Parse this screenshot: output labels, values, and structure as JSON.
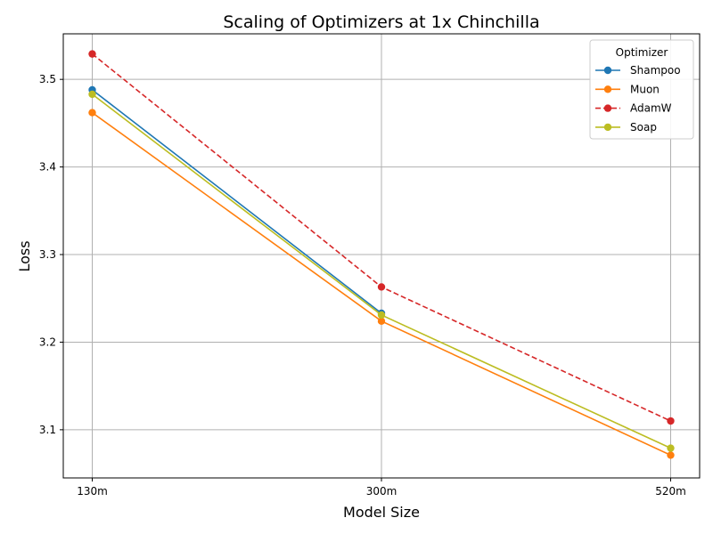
{
  "chart_data": {
    "type": "line",
    "title": "Scaling of Optimizers at 1x Chinchilla",
    "xlabel": "Model Size",
    "ylabel": "Loss",
    "categories": [
      "130m",
      "300m",
      "520m"
    ],
    "ylim": [
      3.045,
      3.552
    ],
    "yticks": [
      3.1,
      3.2,
      3.3,
      3.4,
      3.5
    ],
    "grid": true,
    "legend": {
      "title": "Optimizer",
      "placement": "top-right"
    },
    "series": [
      {
        "name": "Shampoo",
        "color": "#1f77b4",
        "dash": "solid",
        "values": [
          3.488,
          3.233,
          null
        ]
      },
      {
        "name": "Muon",
        "color": "#ff7f0e",
        "dash": "solid",
        "values": [
          3.462,
          3.224,
          3.071
        ]
      },
      {
        "name": "AdamW",
        "color": "#d62728",
        "dash": "dashed",
        "values": [
          3.529,
          3.263,
          3.11
        ]
      },
      {
        "name": "Soap",
        "color": "#bcbd22",
        "dash": "solid",
        "values": [
          3.483,
          3.231,
          3.079
        ]
      }
    ]
  }
}
